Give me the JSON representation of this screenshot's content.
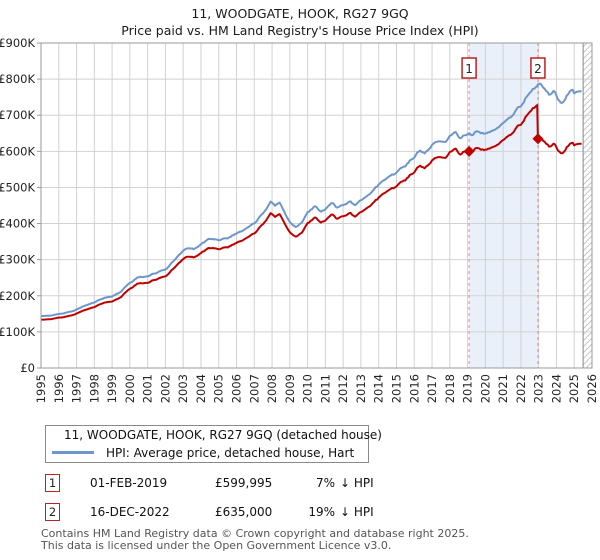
{
  "title": "11, WOODGATE, HOOK, RG27 9GQ",
  "subtitle": "Price paid vs. HM Land Registry's House Price Index (HPI)",
  "chart_data": {
    "type": "line",
    "title": "11, WOODGATE, HOOK, RG27 9GQ — Price paid vs. HPI",
    "unit": "GBP thousands",
    "x_axis": {
      "start_year": 1995,
      "end_year": 2026,
      "tick_step": 1
    },
    "y_axis": {
      "min": 0,
      "max": 900,
      "tick_labels": [
        "£0",
        "£100K",
        "£200K",
        "£300K",
        "£400K",
        "£500K",
        "£600K",
        "£700K",
        "£800K",
        "£900K"
      ]
    },
    "grid": true,
    "colors": {
      "property": "#c00000",
      "hpi": "#6d96ca",
      "dashed": "#ee8888",
      "shade": "#eaf0fa",
      "grid": "#d2d2d2",
      "border": "#9a9a9a",
      "hatch": "#c8c8c8"
    },
    "shaded_region": {
      "from": 2019.085,
      "to": 2022.958
    },
    "future_hatch_from": 2025.5,
    "data_end": 2025.49,
    "sales": [
      {
        "n": "1",
        "year": 2019.085,
        "date": "01-FEB-2019",
        "price_k": 599.995
      },
      {
        "n": "2",
        "year": 2022.958,
        "date": "16-DEC-2022",
        "price_k": 635
      }
    ],
    "series": [
      {
        "name": "11, WOODGATE, HOOK, RG27 9GQ (detached house)",
        "color": "#c00000",
        "anchors": [
          [
            1995,
            134
          ],
          [
            1995.5,
            136
          ],
          [
            1996,
            139
          ],
          [
            1996.5,
            143
          ],
          [
            1997,
            151
          ],
          [
            1997.5,
            161
          ],
          [
            1998,
            169
          ],
          [
            1998.5,
            180
          ],
          [
            1999,
            184
          ],
          [
            1999.5,
            197
          ],
          [
            2000,
            219
          ],
          [
            2000.4,
            233
          ],
          [
            2001,
            237
          ],
          [
            2001.5,
            246
          ],
          [
            2002,
            253
          ],
          [
            2002.5,
            277
          ],
          [
            2003,
            302
          ],
          [
            2003.25,
            309
          ],
          [
            2003.6,
            305
          ],
          [
            2004,
            318
          ],
          [
            2004.4,
            332
          ],
          [
            2005,
            329
          ],
          [
            2005.5,
            335
          ],
          [
            2006,
            346
          ],
          [
            2006.5,
            358
          ],
          [
            2007,
            374
          ],
          [
            2007.5,
            400
          ],
          [
            2007.95,
            428
          ],
          [
            2008.2,
            417
          ],
          [
            2008.45,
            426
          ],
          [
            2008.7,
            400
          ],
          [
            2009,
            374
          ],
          [
            2009.35,
            363
          ],
          [
            2009.7,
            377
          ],
          [
            2010,
            400
          ],
          [
            2010.4,
            417
          ],
          [
            2010.7,
            402
          ],
          [
            2011,
            409
          ],
          [
            2011.4,
            426
          ],
          [
            2011.7,
            414
          ],
          [
            2012,
            419
          ],
          [
            2012.4,
            430
          ],
          [
            2012.7,
            420
          ],
          [
            2013,
            433
          ],
          [
            2013.5,
            448
          ],
          [
            2014,
            472
          ],
          [
            2014.5,
            493
          ],
          [
            2015,
            504
          ],
          [
            2015.5,
            521
          ],
          [
            2016,
            541
          ],
          [
            2016.3,
            560
          ],
          [
            2016.6,
            551
          ],
          [
            2017,
            575
          ],
          [
            2017.4,
            590
          ],
          [
            2017.7,
            581
          ],
          [
            2018,
            597
          ],
          [
            2018.3,
            606
          ],
          [
            2018.6,
            591
          ],
          [
            2019,
            605
          ],
          [
            2019.085,
            600
          ],
          [
            2019.3,
            597
          ],
          [
            2019.6,
            609
          ],
          [
            2020,
            603
          ],
          [
            2020.5,
            614
          ],
          [
            2021,
            629
          ],
          [
            2021.5,
            651
          ],
          [
            2022,
            675
          ],
          [
            2022.5,
            709
          ],
          [
            2022.917,
            729
          ],
          [
            2022.958,
            635
          ],
          [
            2023.1,
            640
          ],
          [
            2023.4,
            625
          ],
          [
            2023.6,
            614
          ],
          [
            2023.85,
            622
          ],
          [
            2024.1,
            601
          ],
          [
            2024.3,
            591
          ],
          [
            2024.6,
            612
          ],
          [
            2024.85,
            625
          ],
          [
            2025,
            616
          ],
          [
            2025.2,
            624
          ],
          [
            2025.49,
            622
          ]
        ],
        "exact_points": [
          [
            2019.085,
            599.995
          ],
          [
            2022.958,
            635
          ]
        ]
      },
      {
        "name": "HPI: Average price, detached house, Hart",
        "color": "#6d96ca",
        "anchors": [
          [
            1995,
            144
          ],
          [
            1995.5,
            146
          ],
          [
            1996,
            149
          ],
          [
            1996.5,
            154
          ],
          [
            1997,
            162
          ],
          [
            1997.5,
            173
          ],
          [
            1998,
            182
          ],
          [
            1998.5,
            193
          ],
          [
            1999,
            198
          ],
          [
            1999.5,
            212
          ],
          [
            2000,
            235
          ],
          [
            2000.4,
            250
          ],
          [
            2001,
            255
          ],
          [
            2001.5,
            264
          ],
          [
            2002,
            272
          ],
          [
            2002.5,
            298
          ],
          [
            2003,
            325
          ],
          [
            2003.25,
            332
          ],
          [
            2003.6,
            328
          ],
          [
            2004,
            342
          ],
          [
            2004.4,
            357
          ],
          [
            2005,
            354
          ],
          [
            2005.5,
            360
          ],
          [
            2006,
            372
          ],
          [
            2006.5,
            385
          ],
          [
            2007,
            402
          ],
          [
            2007.5,
            430
          ],
          [
            2007.95,
            460
          ],
          [
            2008.2,
            448
          ],
          [
            2008.45,
            458
          ],
          [
            2008.7,
            430
          ],
          [
            2009,
            402
          ],
          [
            2009.35,
            390
          ],
          [
            2009.7,
            405
          ],
          [
            2010,
            430
          ],
          [
            2010.4,
            448
          ],
          [
            2010.7,
            432
          ],
          [
            2011,
            440
          ],
          [
            2011.4,
            458
          ],
          [
            2011.7,
            445
          ],
          [
            2012,
            450
          ],
          [
            2012.4,
            462
          ],
          [
            2012.7,
            452
          ],
          [
            2013,
            466
          ],
          [
            2013.5,
            482
          ],
          [
            2014,
            508
          ],
          [
            2014.5,
            530
          ],
          [
            2015,
            542
          ],
          [
            2015.5,
            560
          ],
          [
            2016,
            582
          ],
          [
            2016.3,
            602
          ],
          [
            2016.6,
            592
          ],
          [
            2017,
            618
          ],
          [
            2017.4,
            634
          ],
          [
            2017.7,
            625
          ],
          [
            2018,
            642
          ],
          [
            2018.3,
            652
          ],
          [
            2018.6,
            636
          ],
          [
            2019,
            650
          ],
          [
            2019.3,
            642
          ],
          [
            2019.6,
            655
          ],
          [
            2020,
            648
          ],
          [
            2020.5,
            660
          ],
          [
            2021,
            676
          ],
          [
            2021.5,
            700
          ],
          [
            2022,
            726
          ],
          [
            2022.5,
            762
          ],
          [
            2022.958,
            784
          ],
          [
            2023.1,
            790
          ],
          [
            2023.4,
            772
          ],
          [
            2023.6,
            758
          ],
          [
            2023.85,
            768
          ],
          [
            2024.1,
            742
          ],
          [
            2024.3,
            730
          ],
          [
            2024.6,
            755
          ],
          [
            2024.85,
            772
          ],
          [
            2025,
            760
          ],
          [
            2025.2,
            770
          ],
          [
            2025.49,
            768
          ]
        ],
        "exact_points": []
      }
    ]
  },
  "legend": {
    "items": [
      {
        "label": "11, WOODGATE, HOOK, RG27 9GQ (detached house)",
        "color": "#c00000"
      },
      {
        "label": "HPI: Average price, detached house, Hart",
        "color": "#6d96ca"
      }
    ]
  },
  "annotations": [
    {
      "number": "1",
      "date": "01-FEB-2019",
      "price": "£599,995",
      "pct": "7%",
      "rel": "↓ HPI"
    },
    {
      "number": "2",
      "date": "16-DEC-2022",
      "price": "£635,000",
      "pct": "19%",
      "rel": "↓ HPI"
    }
  ],
  "footer": {
    "line1": "Contains HM Land Registry data © Crown copyright and database right 2025.",
    "line2": "This data is licensed under the Open Government Licence v3.0."
  }
}
